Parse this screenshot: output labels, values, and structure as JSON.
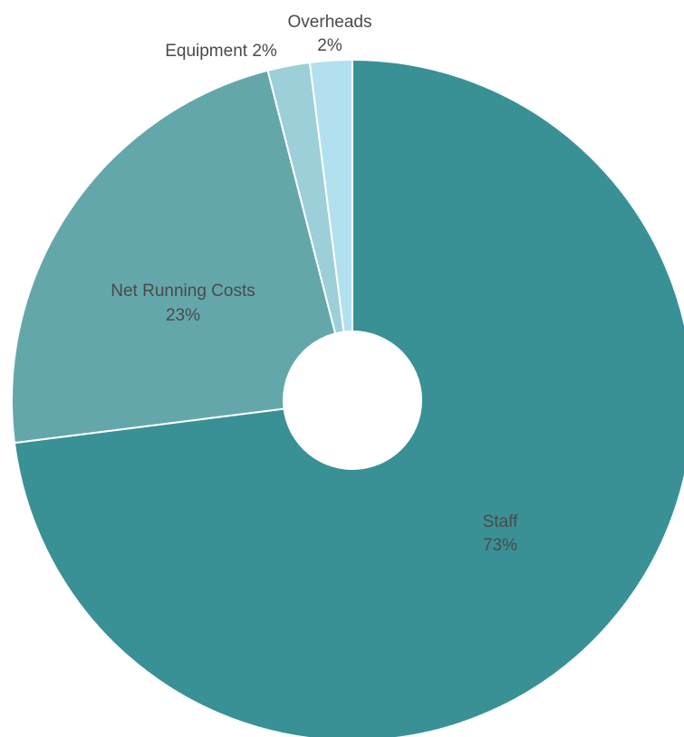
{
  "chart_data": {
    "type": "pie",
    "donut": true,
    "title": "",
    "legend": "none",
    "slices": [
      {
        "name": "Staff",
        "value": 73,
        "value_label": "73%",
        "color": "#399196"
      },
      {
        "name": "Net Running Costs",
        "value": 23,
        "value_label": "23%",
        "color": "#64a7ab"
      },
      {
        "name": "Equipment",
        "value": 2,
        "value_label": "2%",
        "color": "#9ccfd8"
      },
      {
        "name": "Overheads",
        "value": 2,
        "value_label": "2%",
        "color": "#b2e0ee"
      }
    ],
    "labels": {
      "staff": {
        "name": "Staff",
        "value": "73%"
      },
      "net_running_costs": {
        "name": "Net Running Costs",
        "value": "23%"
      },
      "equipment": {
        "text": "Equipment 2%"
      },
      "overheads": {
        "name": "Overheads",
        "value": "2%"
      }
    }
  }
}
